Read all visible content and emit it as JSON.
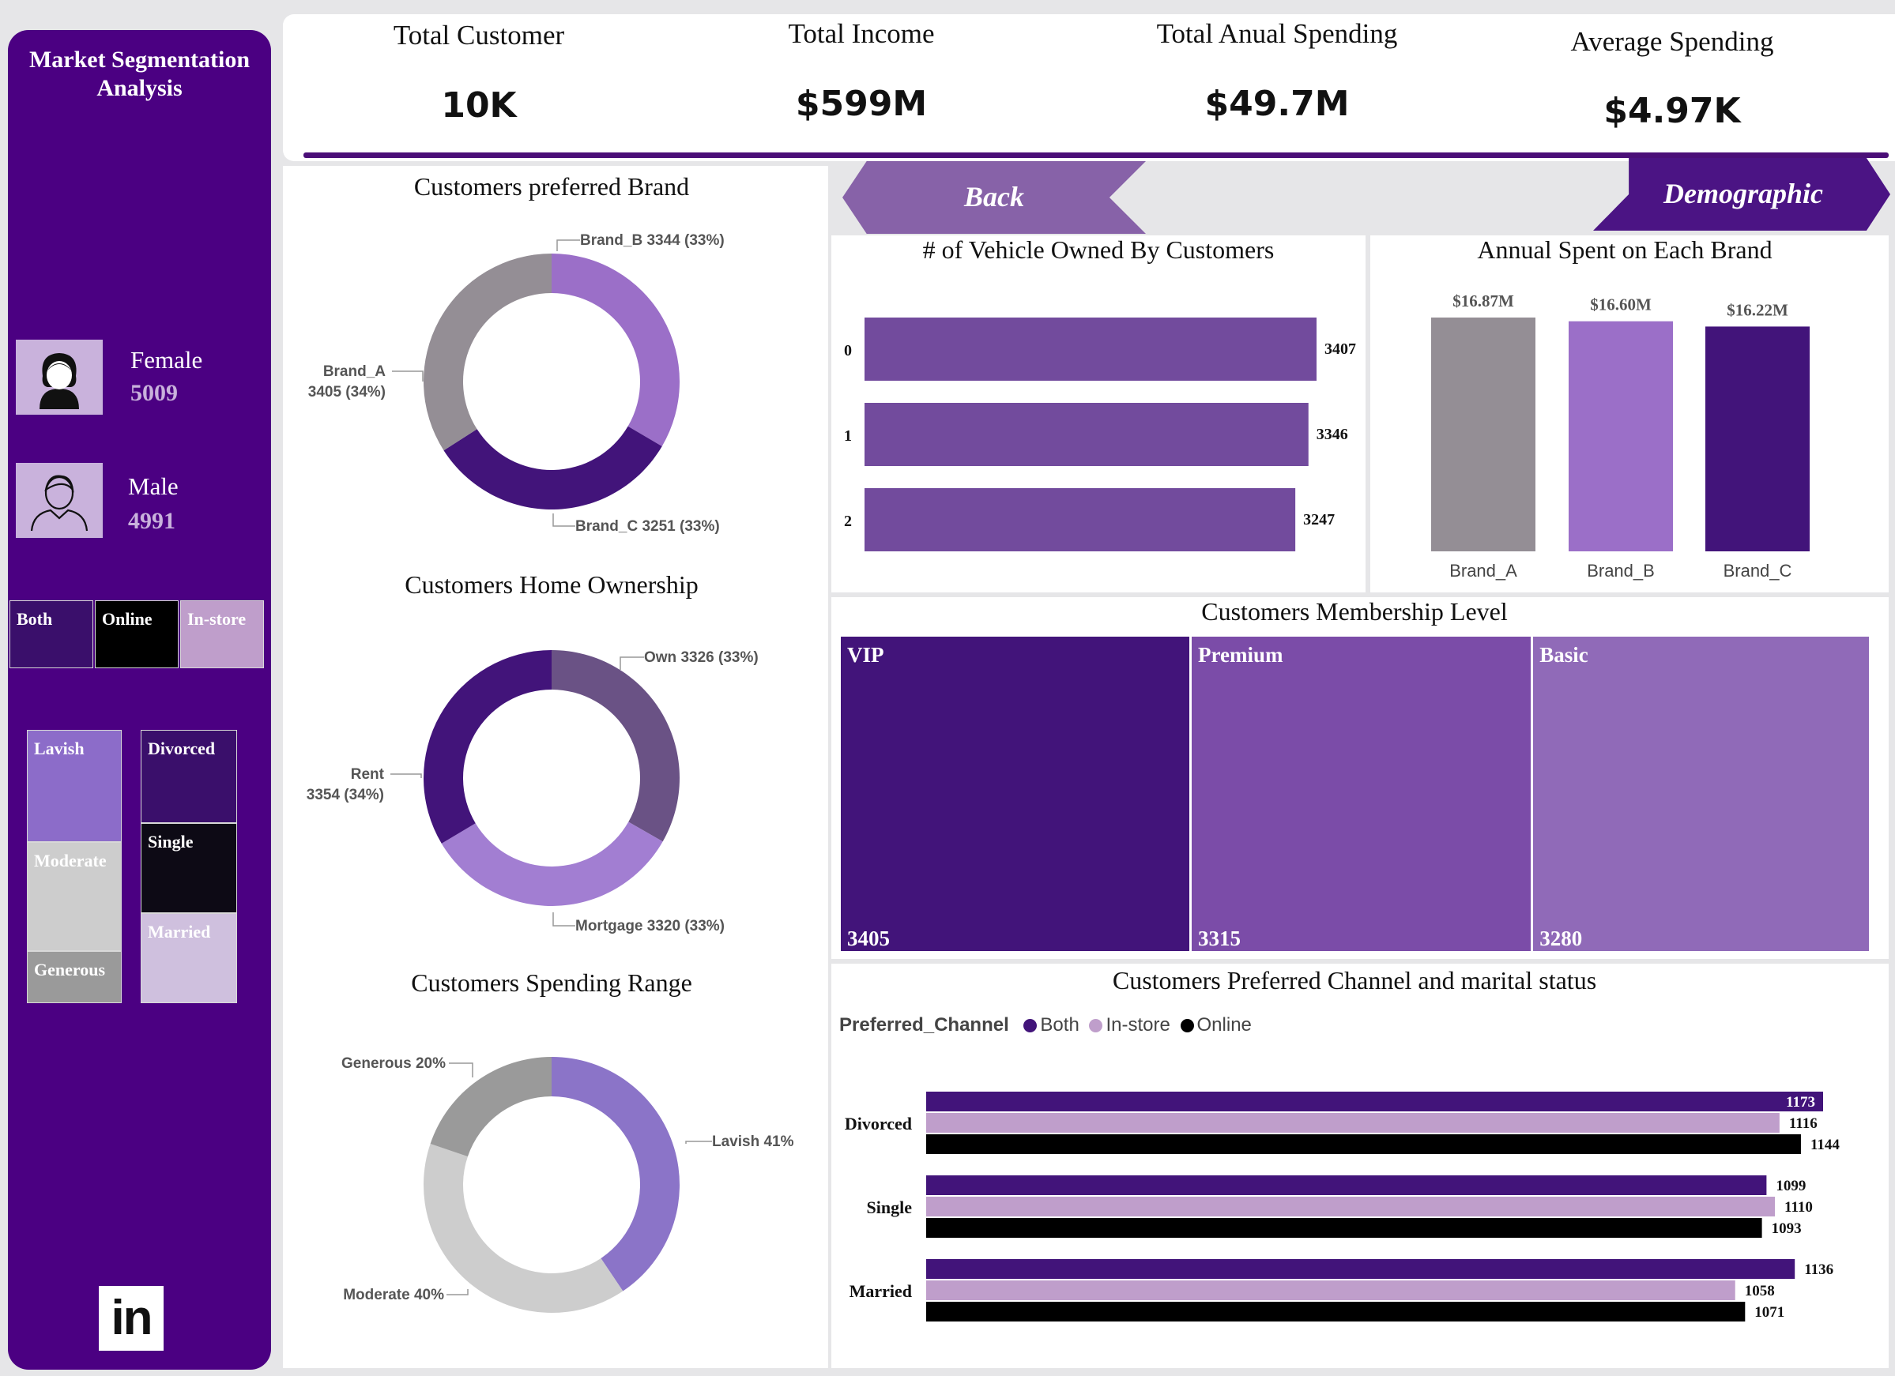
{
  "sidebar": {
    "title_line1": "Market Segmentation",
    "title_line2": "Analysis",
    "female": {
      "label": "Female",
      "count": "5009"
    },
    "male": {
      "label": "Male",
      "count": "4991"
    },
    "channel_slicer": [
      "Both",
      "Online",
      "In-store"
    ],
    "spending_slicer": [
      "Lavish",
      "Moderate",
      "Generous"
    ],
    "marital_slicer": [
      "Divorced",
      "Single",
      "Married"
    ],
    "linkedin_label": "in"
  },
  "kpis": [
    {
      "label": "Total Customer",
      "value": "10K"
    },
    {
      "label": "Total Income",
      "value": "$599M"
    },
    {
      "label": "Total Anual Spending",
      "value": "$49.7M"
    },
    {
      "label": "Average Spending",
      "value": "$4.97K"
    }
  ],
  "nav": {
    "back": "Back",
    "next": "Demographic"
  },
  "colors": {
    "sidebar": "#4b0082",
    "dark_purple": "#42147a",
    "mid_purple": "#724b9d",
    "light_purple": "#9b6fc8",
    "lilac": "#bf9ecb",
    "grey": "#948e95"
  },
  "chart_data": [
    {
      "id": "brand",
      "type": "pie",
      "title": "Customers preferred Brand",
      "slices": [
        {
          "label": "Brand_B",
          "value": 3344,
          "text_l1": "Brand_B 3344 (33%)",
          "text_l2": "",
          "color": "#9b6fc8"
        },
        {
          "label": "Brand_C",
          "value": 3251,
          "text_l1": "Brand_C 3251 (33%)",
          "text_l2": "",
          "color": "#42147a"
        },
        {
          "label": "Brand_A",
          "value": 3405,
          "text_l1": "Brand_A",
          "text_l2": "3405 (34%)",
          "color": "#948e95"
        }
      ]
    },
    {
      "id": "home",
      "type": "pie",
      "title": "Customers Home Ownership",
      "slices": [
        {
          "label": "Own",
          "value": 3326,
          "text_l1": "Own 3326 (33%)",
          "text_l2": "",
          "color": "#6a5285"
        },
        {
          "label": "Mortgage",
          "value": 3320,
          "text_l1": "Mortgage 3320 (33%)",
          "text_l2": "",
          "color": "#a27ed2"
        },
        {
          "label": "Rent",
          "value": 3354,
          "text_l1": "Rent",
          "text_l2": "3354 (34%)",
          "color": "#42147a"
        }
      ]
    },
    {
      "id": "spending",
      "type": "pie",
      "title": "Customers Spending Range",
      "slices": [
        {
          "label": "Lavish",
          "value": 41,
          "text_l1": "Lavish 41%",
          "text_l2": "",
          "color": "#8b74c8"
        },
        {
          "label": "Moderate",
          "value": 40,
          "text_l1": "Moderate 40%",
          "text_l2": "",
          "color": "#cdcdcd"
        },
        {
          "label": "Generous",
          "value": 20,
          "text_l1": "Generous 20%",
          "text_l2": "",
          "color": "#9a9a9a"
        }
      ]
    },
    {
      "id": "vehicles",
      "type": "bar",
      "orientation": "horizontal",
      "title": "# of Vehicle Owned By Customers",
      "categories": [
        "0",
        "1",
        "2"
      ],
      "values": [
        3407,
        3346,
        3247
      ]
    },
    {
      "id": "annual",
      "type": "bar",
      "title": "Annual Spent on Each Brand",
      "categories": [
        "Brand_A",
        "Brand_B",
        "Brand_C"
      ],
      "values": [
        16.87,
        16.6,
        16.22
      ],
      "value_labels": [
        "$16.87M",
        "$16.60M",
        "$16.22M"
      ],
      "colors": [
        "#948e95",
        "#9b6fc8",
        "#42147a"
      ]
    },
    {
      "id": "membership",
      "type": "treemap",
      "title": "Customers Membership Level",
      "categories": [
        "VIP",
        "Premium",
        "Basic"
      ],
      "values": [
        3405,
        3315,
        3280
      ],
      "colors": [
        "#42147a",
        "#7b4ca8",
        "#906ab8"
      ]
    },
    {
      "id": "channel_marital",
      "type": "bar",
      "orientation": "horizontal",
      "title": "Customers Preferred Channel and marital status",
      "legend_title": "Preferred_Channel",
      "categories": [
        "Divorced",
        "Single",
        "Married"
      ],
      "series": [
        {
          "name": "Both",
          "values": [
            1173,
            1099,
            1136
          ],
          "color": "#42147a"
        },
        {
          "name": "In-store",
          "values": [
            1116,
            1110,
            1058
          ],
          "color": "#bf9ecb"
        },
        {
          "name": "Online",
          "values": [
            1144,
            1093,
            1071
          ],
          "color": "#000000"
        }
      ]
    }
  ]
}
